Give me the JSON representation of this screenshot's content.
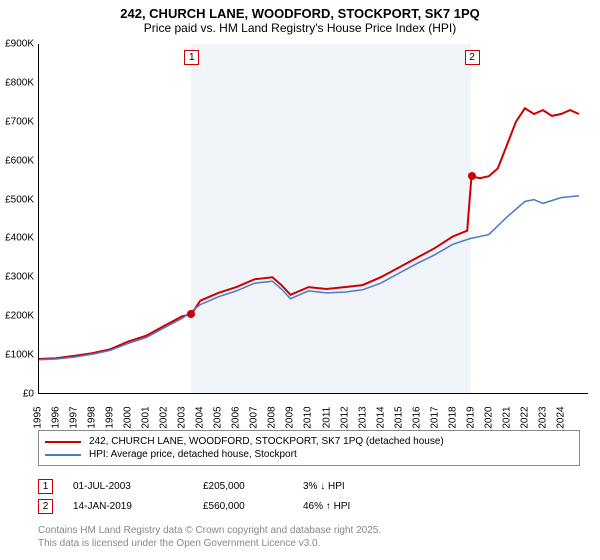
{
  "title_line1": "242, CHURCH LANE, WOODFORD, STOCKPORT, SK7 1PQ",
  "title_line2": "Price paid vs. HM Land Registry's House Price Index (HPI)",
  "chart": {
    "type": "line",
    "background_color": "#ffffff",
    "shade_color": "#e8eef7",
    "xlim": [
      1995,
      2025.5
    ],
    "ylim": [
      0,
      900000
    ],
    "yticks": [
      0,
      100000,
      200000,
      300000,
      400000,
      500000,
      600000,
      700000,
      800000,
      900000
    ],
    "ytick_labels": [
      "£0",
      "£100K",
      "£200K",
      "£300K",
      "£400K",
      "£500K",
      "£600K",
      "£700K",
      "£800K",
      "£900K"
    ],
    "xticks": [
      1995,
      1996,
      1997,
      1998,
      1999,
      2000,
      2001,
      2002,
      2003,
      2004,
      2005,
      2006,
      2007,
      2008,
      2009,
      2010,
      2011,
      2012,
      2013,
      2014,
      2015,
      2016,
      2017,
      2018,
      2019,
      2020,
      2021,
      2022,
      2023,
      2024
    ],
    "series": [
      {
        "name": "property",
        "label": "242, CHURCH LANE, WOODFORD, STOCKPORT, SK7 1PQ (detached house)",
        "color": "#cc0000",
        "width": 2,
        "data": [
          [
            1995,
            90000
          ],
          [
            1996,
            92000
          ],
          [
            1997,
            98000
          ],
          [
            1998,
            105000
          ],
          [
            1999,
            115000
          ],
          [
            2000,
            135000
          ],
          [
            2001,
            150000
          ],
          [
            2002,
            175000
          ],
          [
            2003,
            200000
          ],
          [
            2003.5,
            205000
          ],
          [
            2004,
            240000
          ],
          [
            2005,
            260000
          ],
          [
            2006,
            275000
          ],
          [
            2007,
            295000
          ],
          [
            2008,
            300000
          ],
          [
            2008.5,
            280000
          ],
          [
            2009,
            255000
          ],
          [
            2010,
            275000
          ],
          [
            2011,
            270000
          ],
          [
            2012,
            275000
          ],
          [
            2013,
            280000
          ],
          [
            2014,
            300000
          ],
          [
            2015,
            325000
          ],
          [
            2016,
            350000
          ],
          [
            2017,
            375000
          ],
          [
            2018,
            405000
          ],
          [
            2018.8,
            420000
          ],
          [
            2019.04,
            560000
          ],
          [
            2019.5,
            555000
          ],
          [
            2020,
            560000
          ],
          [
            2020.5,
            580000
          ],
          [
            2021,
            640000
          ],
          [
            2021.5,
            700000
          ],
          [
            2022,
            735000
          ],
          [
            2022.5,
            720000
          ],
          [
            2023,
            730000
          ],
          [
            2023.5,
            715000
          ],
          [
            2024,
            720000
          ],
          [
            2024.5,
            730000
          ],
          [
            2025,
            720000
          ]
        ]
      },
      {
        "name": "hpi",
        "label": "HPI: Average price, detached house, Stockport",
        "color": "#4a7ac8",
        "width": 1.5,
        "data": [
          [
            1995,
            88000
          ],
          [
            1996,
            90000
          ],
          [
            1997,
            95000
          ],
          [
            1998,
            102000
          ],
          [
            1999,
            112000
          ],
          [
            2000,
            130000
          ],
          [
            2001,
            145000
          ],
          [
            2002,
            170000
          ],
          [
            2003,
            195000
          ],
          [
            2004,
            230000
          ],
          [
            2005,
            250000
          ],
          [
            2006,
            265000
          ],
          [
            2007,
            285000
          ],
          [
            2008,
            290000
          ],
          [
            2008.5,
            270000
          ],
          [
            2009,
            245000
          ],
          [
            2010,
            265000
          ],
          [
            2011,
            260000
          ],
          [
            2012,
            262000
          ],
          [
            2013,
            268000
          ],
          [
            2014,
            285000
          ],
          [
            2015,
            310000
          ],
          [
            2016,
            335000
          ],
          [
            2017,
            358000
          ],
          [
            2018,
            385000
          ],
          [
            2019,
            400000
          ],
          [
            2020,
            410000
          ],
          [
            2021,
            455000
          ],
          [
            2022,
            495000
          ],
          [
            2022.5,
            500000
          ],
          [
            2023,
            490000
          ],
          [
            2024,
            505000
          ],
          [
            2025,
            510000
          ]
        ]
      }
    ],
    "sale_markers": [
      {
        "num": "1",
        "x": 2003.5,
        "y": 205000
      },
      {
        "num": "2",
        "x": 2019.04,
        "y": 560000
      }
    ]
  },
  "legend": {
    "items": [
      {
        "label": "242, CHURCH LANE, WOODFORD, STOCKPORT, SK7 1PQ (detached house)",
        "color": "#cc0000"
      },
      {
        "label": "HPI: Average price, detached house, Stockport",
        "color": "#4a7ac8"
      }
    ]
  },
  "sales": [
    {
      "num": "1",
      "date": "01-JUL-2003",
      "price": "£205,000",
      "diff": "3% ↓ HPI"
    },
    {
      "num": "2",
      "date": "14-JAN-2019",
      "price": "£560,000",
      "diff": "46% ↑ HPI"
    }
  ],
  "footer_line1": "Contains HM Land Registry data © Crown copyright and database right 2025.",
  "footer_line2": "This data is licensed under the Open Government Licence v3.0."
}
